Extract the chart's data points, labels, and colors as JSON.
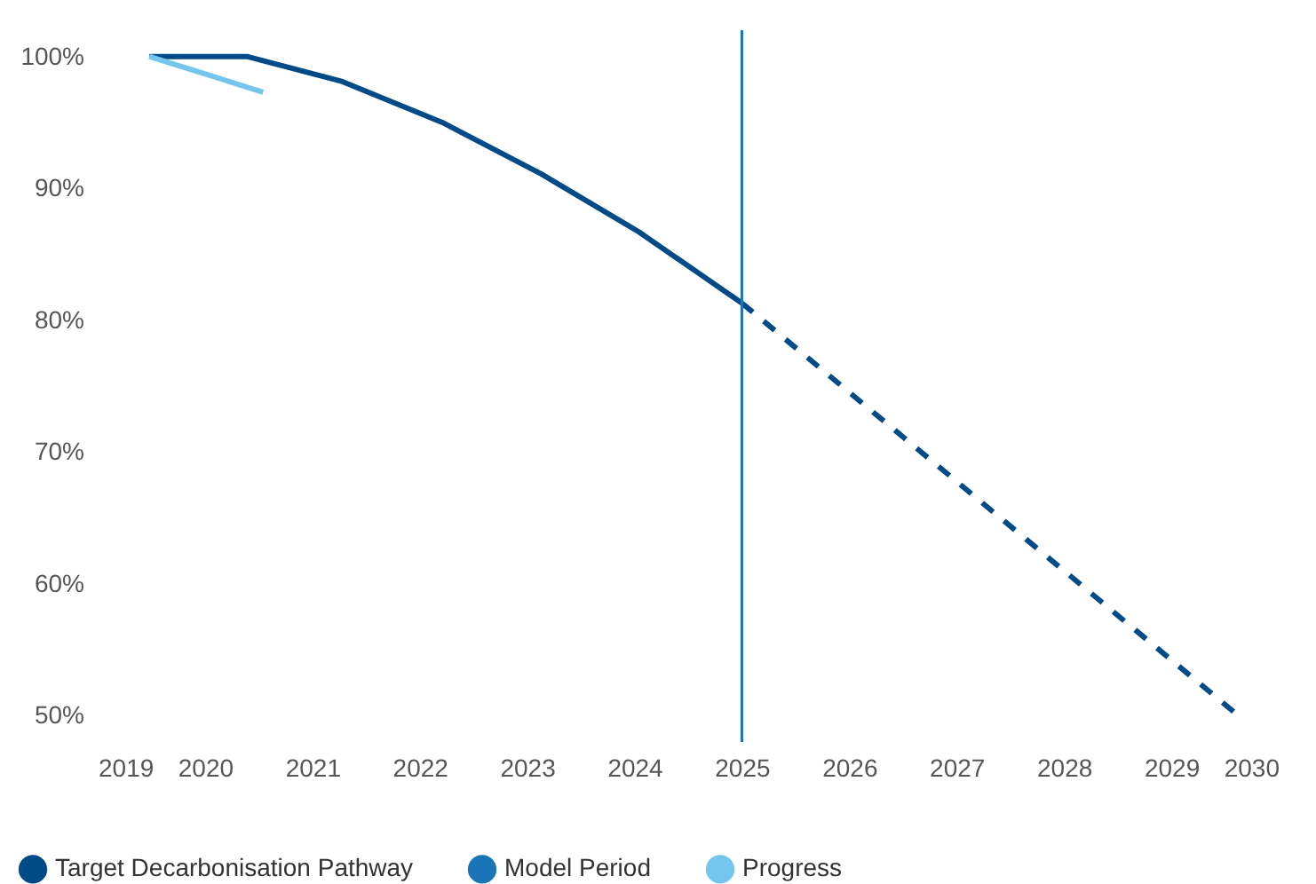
{
  "chart_data": {
    "type": "line",
    "x": [
      2019.48,
      2020.39,
      2021.28,
      2022.21,
      2023.13,
      2024.04,
      2025
    ],
    "xlim": [
      2019,
      2030
    ],
    "xticks": [
      2019,
      2020,
      2021,
      2022,
      2023,
      2024,
      2025,
      2026,
      2027,
      2028,
      2029,
      2030
    ],
    "ylim": [
      48,
      102
    ],
    "yticks": [
      {
        "value": 50,
        "label": "50%"
      },
      {
        "value": 60,
        "label": "60%"
      },
      {
        "value": 70,
        "label": "70%"
      },
      {
        "value": 80,
        "label": "80%"
      },
      {
        "value": 90,
        "label": "90%"
      },
      {
        "value": 100,
        "label": "100%"
      }
    ],
    "series": [
      {
        "name": "Target Decarbonisation Pathway",
        "color": "#004b87",
        "line_style": "solid",
        "values": [
          100,
          100,
          98.1,
          95,
          91.1,
          86.7,
          81.3
        ]
      },
      {
        "color": "#004b87",
        "line_style": "dashed",
        "x": [
          2025,
          2029.58
        ],
        "values": [
          81.3,
          50.3
        ]
      },
      {
        "name": "Progress",
        "color": "#74c6ee",
        "line_style": "solid",
        "x": [
          2019.48,
          2020.54
        ],
        "values": [
          100,
          97.3
        ]
      }
    ],
    "ref_lines": [
      {
        "axis": "x",
        "value": 2025,
        "label": "Model Period",
        "color": "#1a74b8"
      }
    ],
    "grid": false,
    "marker": "none",
    "legend": "bottom"
  }
}
